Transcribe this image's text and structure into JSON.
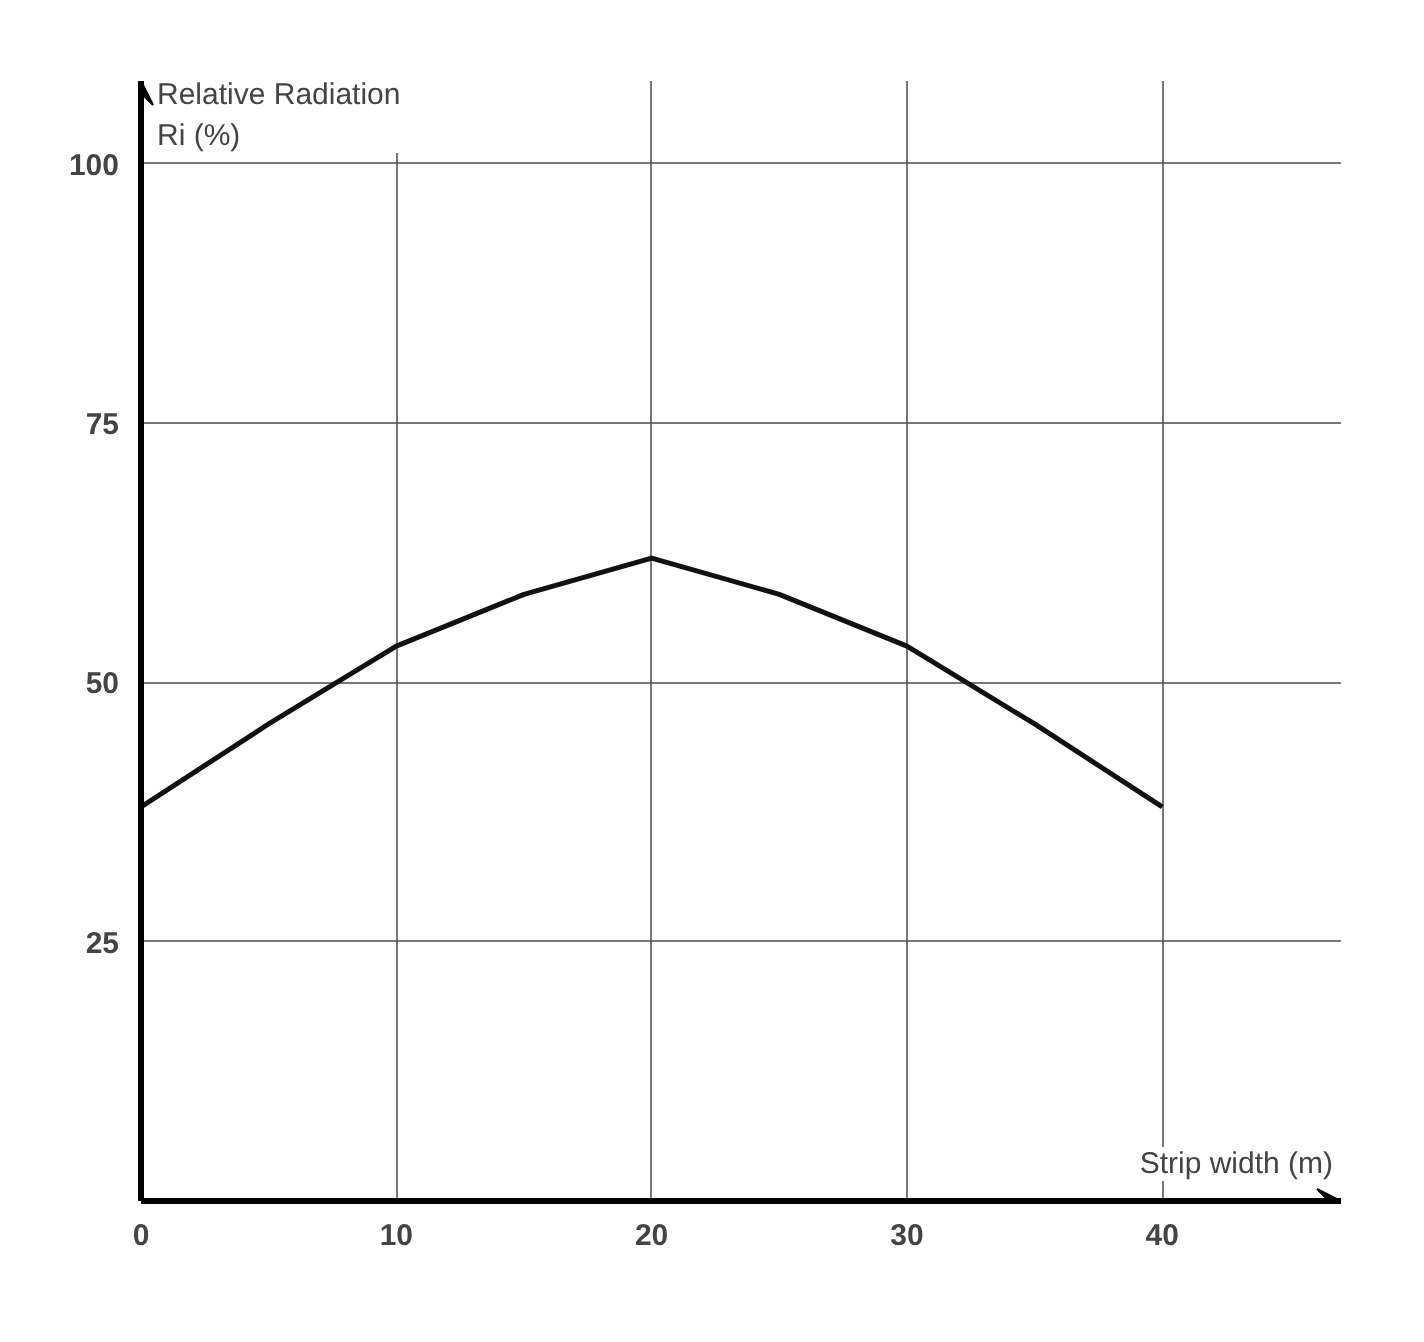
{
  "chart_data": {
    "type": "line",
    "ylabel": "Relative Radiation\nRi (%)",
    "xlabel": "Strip width (m)",
    "x": [
      0,
      5,
      10,
      15,
      20,
      25,
      30,
      35,
      40
    ],
    "series": [
      {
        "color": "#111111",
        "values": [
          38,
          46,
          53.5,
          58.5,
          62,
          58.5,
          53.5,
          46,
          38
        ]
      }
    ],
    "xlim": [
      0,
      47
    ],
    "ylim": [
      0,
      108
    ],
    "xticks": [
      0,
      10,
      20,
      30,
      40
    ],
    "yticks": [
      25,
      50,
      75,
      100
    ],
    "grid": true,
    "marker": "none",
    "line_style": "solid"
  }
}
